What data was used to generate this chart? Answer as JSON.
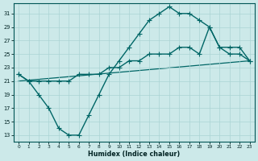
{
  "bg_color": "#cce9e9",
  "grid_color": "#aad4d4",
  "line_color": "#006666",
  "xlabel": "Humidex (Indice chaleur)",
  "xlim": [
    -0.5,
    23.5
  ],
  "ylim": [
    12,
    32.5
  ],
  "xticks": [
    0,
    1,
    2,
    3,
    4,
    5,
    6,
    7,
    8,
    9,
    10,
    11,
    12,
    13,
    14,
    15,
    16,
    17,
    18,
    19,
    20,
    21,
    22,
    23
  ],
  "yticks": [
    13,
    15,
    17,
    19,
    21,
    23,
    25,
    27,
    29,
    31
  ],
  "curve1_x": [
    0,
    1,
    2,
    3,
    4,
    5,
    6,
    7,
    8,
    9,
    10,
    11,
    12,
    13,
    14,
    15,
    16,
    17,
    18,
    19,
    20,
    21,
    22,
    23
  ],
  "curve1_y": [
    22,
    21,
    19,
    17,
    14,
    13,
    13,
    16,
    19,
    22,
    24,
    26,
    28,
    30,
    31,
    32,
    31,
    31,
    30,
    29,
    26,
    25,
    25,
    24
  ],
  "curve2_x": [
    0,
    1,
    2,
    3,
    4,
    5,
    6,
    7,
    8,
    9,
    10,
    11,
    12,
    13,
    14,
    15,
    16,
    17,
    18,
    19,
    20,
    21,
    22,
    23
  ],
  "curve2_y": [
    22,
    21,
    21,
    21,
    21,
    21,
    22,
    22,
    22,
    23,
    23,
    24,
    24,
    25,
    25,
    25,
    26,
    26,
    25,
    29,
    26,
    26,
    26,
    24
  ],
  "line_x": [
    0,
    23
  ],
  "line_y": [
    21,
    24
  ]
}
